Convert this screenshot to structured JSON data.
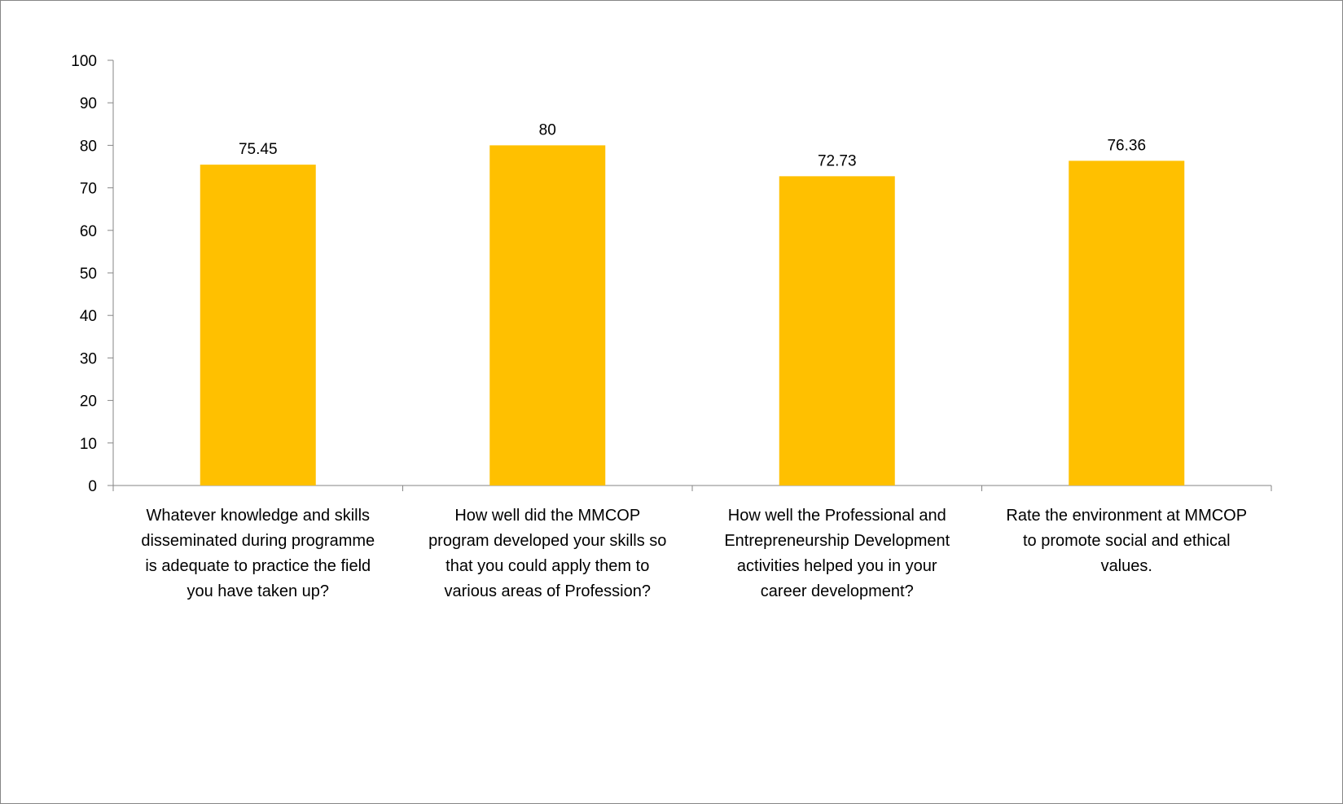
{
  "chart_data": {
    "type": "bar",
    "title": "",
    "xlabel": "",
    "ylabel": "",
    "ylim": [
      0,
      100
    ],
    "ytick_step": 10,
    "grid": false,
    "bar_color": "#FFC000",
    "categories": [
      "Whatever knowledge and skills disseminated during programme is adequate to practice the field you have taken up?",
      "How well did the MMCOP program developed your skills so that you could apply them to various areas of Profession?",
      "How well the Professional and Entrepreneurship Development activities helped you in your career development?",
      "Rate the environment at MMCOP to promote social and ethical values."
    ],
    "category_lines": [
      [
        "Whatever knowledge and skills",
        "disseminated during programme",
        "is adequate to practice the field",
        "you have taken up?"
      ],
      [
        "How well did the MMCOP",
        "program developed your skills so",
        "that you could apply them to",
        "various areas of Profession?"
      ],
      [
        "How well the Professional and",
        "Entrepreneurship Development",
        "activities helped you in your",
        "career development?"
      ],
      [
        "Rate the environment at MMCOP",
        "to promote social and ethical",
        "values."
      ]
    ],
    "values": [
      75.45,
      80,
      72.73,
      76.36
    ],
    "value_labels": [
      "75.45",
      "80",
      "72.73",
      "76.36"
    ]
  }
}
